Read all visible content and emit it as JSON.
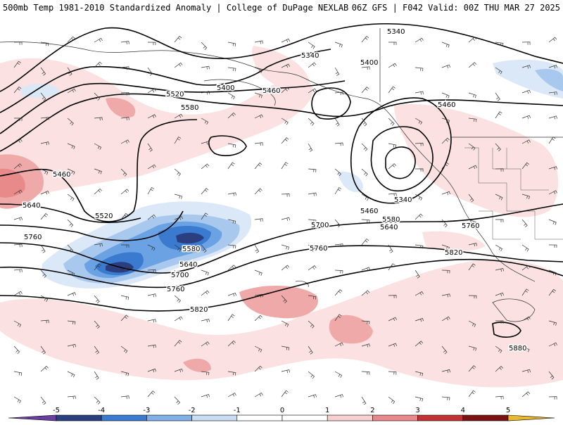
{
  "header": {
    "title_left": "500mb Temp 1981-2010 Standardized Anomaly | College of DuPage NEXLAB",
    "title_right": "06Z GFS | F042 Valid: 00Z THU MAR 27 2025"
  },
  "map": {
    "contour_labels": [
      "5340",
      "5340",
      "5340",
      "5400",
      "5400",
      "5460",
      "5460",
      "5460",
      "5460",
      "5520",
      "5520",
      "5580",
      "5580",
      "5580",
      "5640",
      "5640",
      "5640",
      "5700",
      "5700",
      "5760",
      "5760",
      "5760",
      "5760",
      "5820",
      "5820",
      "5880"
    ]
  },
  "legend": {
    "ticks": [
      "-5",
      "-4",
      "-3",
      "-2",
      "-1",
      "0",
      "1",
      "2",
      "3",
      "4",
      "5"
    ],
    "colors": [
      "#6a3fa0",
      "#2b3f80",
      "#3a7bd0",
      "#7fb0e8",
      "#c8ddf3",
      "#ffffff",
      "#ffffff",
      "#f7cfcf",
      "#e7898a",
      "#c23232",
      "#7a1414",
      "#e8b830"
    ]
  }
}
